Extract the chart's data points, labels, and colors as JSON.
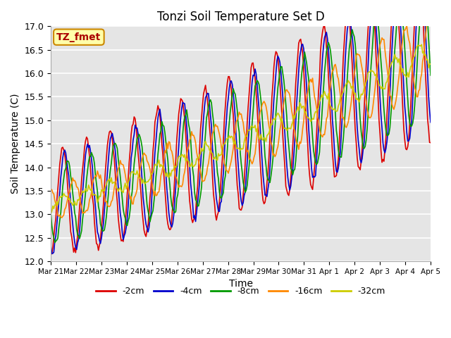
{
  "title": "Tonzi Soil Temperature Set D",
  "xlabel": "Time",
  "ylabel": "Soil Temperature (C)",
  "ylim": [
    12.0,
    17.0
  ],
  "yticks": [
    12.0,
    12.5,
    13.0,
    13.5,
    14.0,
    14.5,
    15.0,
    15.5,
    16.0,
    16.5,
    17.0
  ],
  "series_colors": [
    "#dd0000",
    "#0000cc",
    "#009900",
    "#ff8800",
    "#cccc00"
  ],
  "series_labels": [
    "-2cm",
    "-4cm",
    "-8cm",
    "-16cm",
    "-32cm"
  ],
  "bg_color": "#e5e5e5",
  "annotation_text": "TZ_fmet",
  "annotation_bg": "#ffffaa",
  "annotation_border": "#cc8800",
  "annotation_fg": "#aa0000",
  "x_tick_labels": [
    "Mar 21",
    "Mar 22",
    "Mar 23",
    "Mar 24",
    "Mar 25",
    "Mar 26",
    "Mar 27",
    "Mar 28",
    "Mar 29",
    "Mar 30",
    "Mar 31",
    "Apr 1",
    "Apr 2",
    "Apr 3",
    "Apr 4",
    "Apr 5"
  ],
  "num_days": 16,
  "points_per_day": 24
}
